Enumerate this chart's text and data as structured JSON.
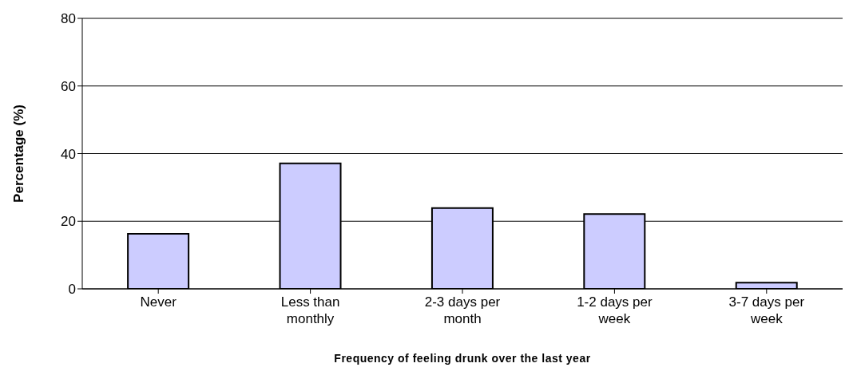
{
  "chart_data": {
    "type": "bar",
    "xlabel": "Frequency of feeling drunk over the last year",
    "ylabel": "Percentage (%)",
    "categories": [
      "Never",
      "Less than monthly",
      "2-3 days per month",
      "1-2 days per week",
      "3-7 days per week"
    ],
    "values": [
      16.3,
      37.1,
      23.9,
      22.1,
      1.8
    ],
    "color": "#ccccff",
    "ylim": [
      0,
      80
    ],
    "yticks": [
      0,
      20,
      40,
      60,
      80
    ],
    "grid": "y"
  }
}
